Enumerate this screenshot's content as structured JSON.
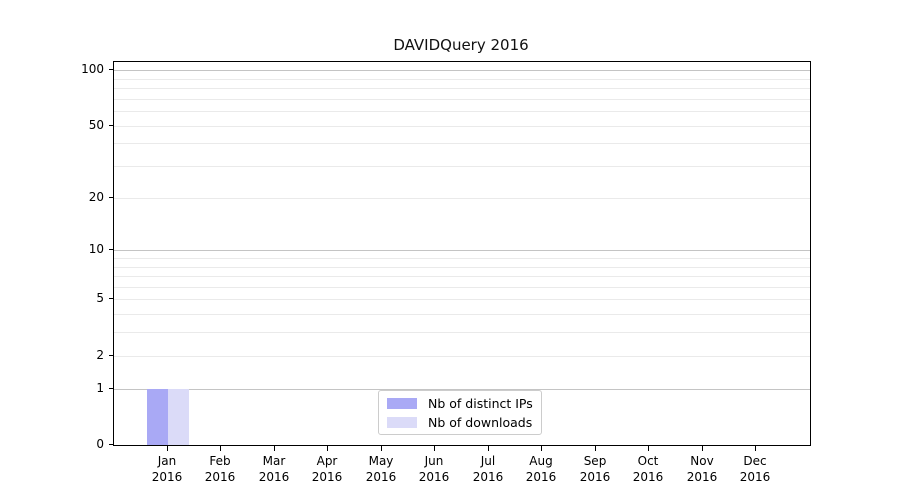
{
  "chart_data": {
    "type": "bar",
    "title": "DAVIDQuery 2016",
    "categories": [
      "Jan 2016",
      "Feb 2016",
      "Mar 2016",
      "Apr 2016",
      "May 2016",
      "Jun 2016",
      "Jul 2016",
      "Aug 2016",
      "Sep 2016",
      "Oct 2016",
      "Nov 2016",
      "Dec 2016"
    ],
    "series": [
      {
        "name": "Nb of distinct IPs",
        "color": "#a9a9f5",
        "values": [
          1,
          0,
          0,
          0,
          0,
          0,
          0,
          0,
          0,
          0,
          0,
          0
        ]
      },
      {
        "name": "Nb of downloads",
        "color": "#dbdbf8",
        "values": [
          1,
          0,
          0,
          0,
          0,
          0,
          0,
          0,
          0,
          0,
          0,
          0
        ]
      }
    ],
    "y_scale": "log1p",
    "y_ticks": [
      0,
      1,
      2,
      5,
      10,
      20,
      50,
      100
    ],
    "y_minor_ticks": [
      3,
      4,
      6,
      7,
      8,
      9,
      30,
      40,
      60,
      70,
      80,
      90
    ],
    "ylim": [
      0,
      111
    ],
    "xlabel": "",
    "ylabel": "",
    "grid": "horizontal",
    "legend_position": "inside-bottom-center",
    "colors": {
      "major_gridline": "#c4c4c4",
      "minor_gridline": "#eaeaea",
      "axis": "#000000",
      "legend_border": "#cccccc"
    }
  }
}
